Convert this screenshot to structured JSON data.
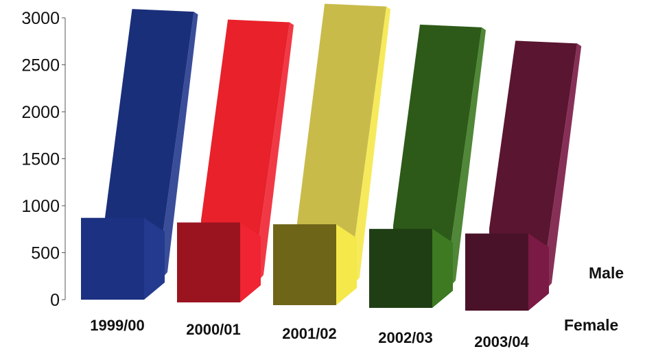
{
  "chart_data": {
    "type": "bar",
    "categories": [
      "1999/00",
      "2000/01",
      "2001/02",
      "2002/03",
      "2003/04"
    ],
    "series": [
      {
        "name": "Female",
        "values": [
          900,
          880,
          890,
          870,
          850
        ]
      },
      {
        "name": "Male",
        "values": [
          3050,
          2960,
          3150,
          2950,
          2800
        ]
      }
    ],
    "y_ticks": [
      "0",
      "500",
      "1000",
      "1500",
      "2000",
      "2500",
      "3000"
    ],
    "ylim": [
      0,
      3000
    ],
    "projection": "3d-depth",
    "colors": {
      "1999/00": {
        "back": "#1a2f7a",
        "front": "#1c3181",
        "side": "#243a8e",
        "top": "#2a3f94"
      },
      "2000/01": {
        "back": "#e8212b",
        "front": "#9a1420",
        "side": "#f02432",
        "top": "#f05058"
      },
      "2001/02": {
        "back": "#c9bb4a",
        "front": "#6f6518",
        "side": "#f5e84a",
        "top": "#ddd070"
      },
      "2002/03": {
        "back": "#2d5a18",
        "front": "#1f3e14",
        "side": "#3d7a22",
        "top": "#4a8a2a"
      },
      "2003/04": {
        "back": "#5a1530",
        "front": "#4a1228",
        "side": "#7a1a45",
        "top": "#7a2a4a"
      }
    }
  }
}
